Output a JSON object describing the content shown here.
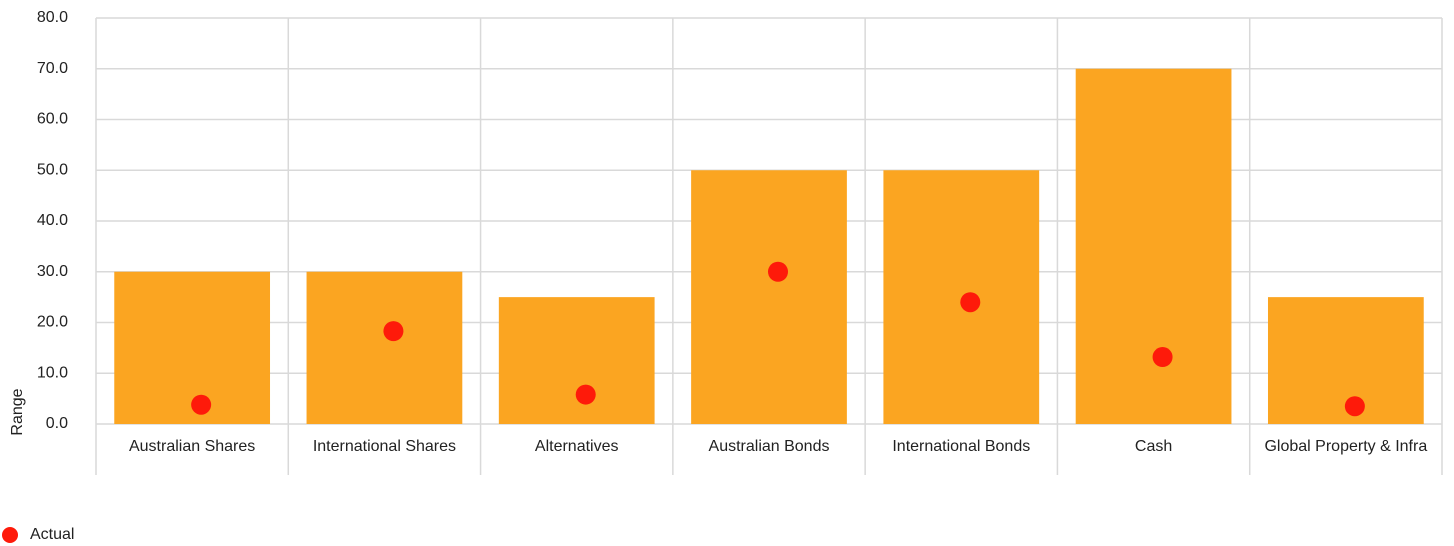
{
  "chart_data": {
    "type": "bar",
    "y_label": "Range",
    "categories": [
      "Australian Shares",
      "International Shares",
      "Alternatives",
      "Australian Bonds",
      "International Bonds",
      "Cash",
      "Global Property & Infra"
    ],
    "values": [
      30,
      30,
      25,
      50,
      50,
      70,
      25
    ],
    "color": "#fba521",
    "series": [
      {
        "name": "Actual",
        "type": "scatter",
        "color": "#fe1a0a",
        "values": [
          3.8,
          18.3,
          5.8,
          30,
          24,
          13.2,
          3.5
        ]
      }
    ],
    "ylim": [
      0,
      80
    ],
    "yticks": [
      {
        "value": 0,
        "label": "0.0"
      },
      {
        "value": 10,
        "label": "10.0"
      },
      {
        "value": 20,
        "label": "20.0"
      },
      {
        "value": 30,
        "label": "30.0"
      },
      {
        "value": 40,
        "label": "40.0"
      },
      {
        "value": 50,
        "label": "50.0"
      },
      {
        "value": 60,
        "label": "60.0"
      },
      {
        "value": 70,
        "label": "70.0"
      },
      {
        "value": 80,
        "label": "80.0"
      }
    ],
    "grid": true,
    "legend": "bottom-left"
  }
}
